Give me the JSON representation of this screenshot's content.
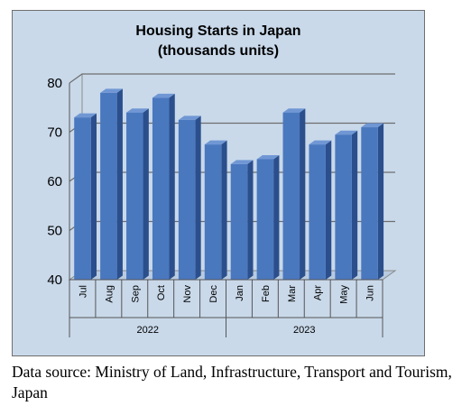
{
  "chart_data": {
    "type": "bar",
    "title_lines": [
      "Housing Starts in Japan",
      "(thousands units)"
    ],
    "categories": [
      "Jul",
      "Aug",
      "Sep",
      "Oct",
      "Nov",
      "Dec",
      "Jan",
      "Feb",
      "Mar",
      "Apr",
      "May",
      "Jun"
    ],
    "groups": [
      {
        "label": "2022",
        "start": 0,
        "end": 5
      },
      {
        "label": "2023",
        "start": 6,
        "end": 11
      }
    ],
    "values": [
      73,
      78,
      74,
      77,
      72.5,
      67.5,
      63.5,
      64.5,
      74,
      67.5,
      69.5,
      71
    ],
    "ylim": [
      40,
      80
    ],
    "yticks": [
      40,
      50,
      60,
      70,
      80
    ],
    "grid": true,
    "colors": {
      "bar_front": "#4a78bf",
      "bar_side": "#2b4f8c",
      "bar_top": "#7097d4",
      "background": "#c9d9ea"
    }
  },
  "caption": "Data source: Ministry of Land, Infrastructure, Transport and Tourism, Japan"
}
